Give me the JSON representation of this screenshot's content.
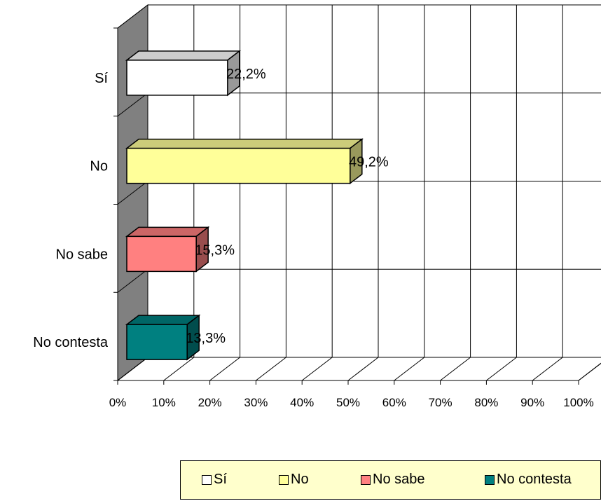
{
  "chart_data": {
    "type": "bar",
    "orientation": "horizontal",
    "three_d": true,
    "categories": [
      "Sí",
      "No",
      "No sabe",
      "No contesta"
    ],
    "values": [
      22.2,
      49.2,
      15.3,
      13.3
    ],
    "value_labels": [
      "22,2%",
      "49,2%",
      "15,3%",
      "13,3%"
    ],
    "colors": [
      "#ffffff",
      "#ffff99",
      "#ff8080",
      "#008080"
    ],
    "x_ticks": [
      "0%",
      "10%",
      "20%",
      "30%",
      "40%",
      "50%",
      "60%",
      "70%",
      "80%",
      "90%",
      "100%"
    ],
    "xlim": [
      0,
      100
    ],
    "grid": true,
    "wall_color": "#808080",
    "legend_position": "bottom",
    "title": "",
    "xlabel": "",
    "ylabel": ""
  },
  "legend": {
    "items": [
      {
        "label": "Sí",
        "color": "#ffffff"
      },
      {
        "label": "No",
        "color": "#ffff99"
      },
      {
        "label": "No sabe",
        "color": "#ff8080"
      },
      {
        "label": "No contesta",
        "color": "#008080"
      }
    ]
  }
}
